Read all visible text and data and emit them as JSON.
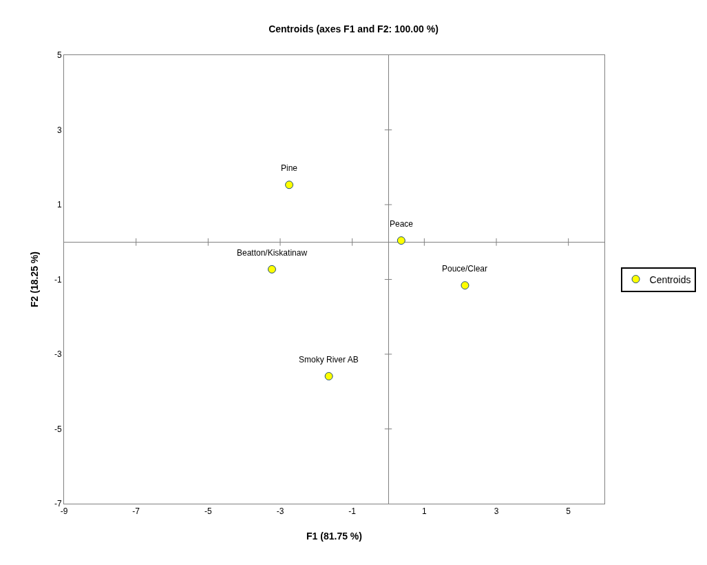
{
  "chart_data": {
    "type": "scatter",
    "title": "Centroids (axes F1 and F2: 100.00 %)",
    "xlabel": "F1 (81.75 %)",
    "ylabel": "F2 (18.25 %)",
    "x": [
      -2.75,
      0.36,
      -3.23,
      2.13,
      -1.65
    ],
    "series": [
      {
        "name": "Centroids",
        "color": "#ffff00",
        "values": [
          1.53,
          0.04,
          -0.73,
          -1.16,
          -3.59
        ]
      }
    ],
    "annotations": [
      {
        "text": "Pine",
        "x": -2.75,
        "y": 1.53
      },
      {
        "text": "Peace",
        "x": 0.36,
        "y": 0.04
      },
      {
        "text": "Beatton/Kiskatinaw",
        "x": -3.23,
        "y": -0.73
      },
      {
        "text": "Pouce/Clear",
        "x": 2.13,
        "y": -1.16
      },
      {
        "text": "Smoky River AB",
        "x": -1.65,
        "y": -3.59
      }
    ],
    "xlim": [
      -9,
      6
    ],
    "xticks": [
      -9,
      -7,
      -5,
      -3,
      -1,
      1,
      3,
      5
    ],
    "ylim": [
      -7,
      5
    ],
    "yticks": [
      -7,
      -5,
      -3,
      -1,
      1,
      3,
      5
    ],
    "grid": false,
    "legend": "right",
    "marker": "circle"
  }
}
